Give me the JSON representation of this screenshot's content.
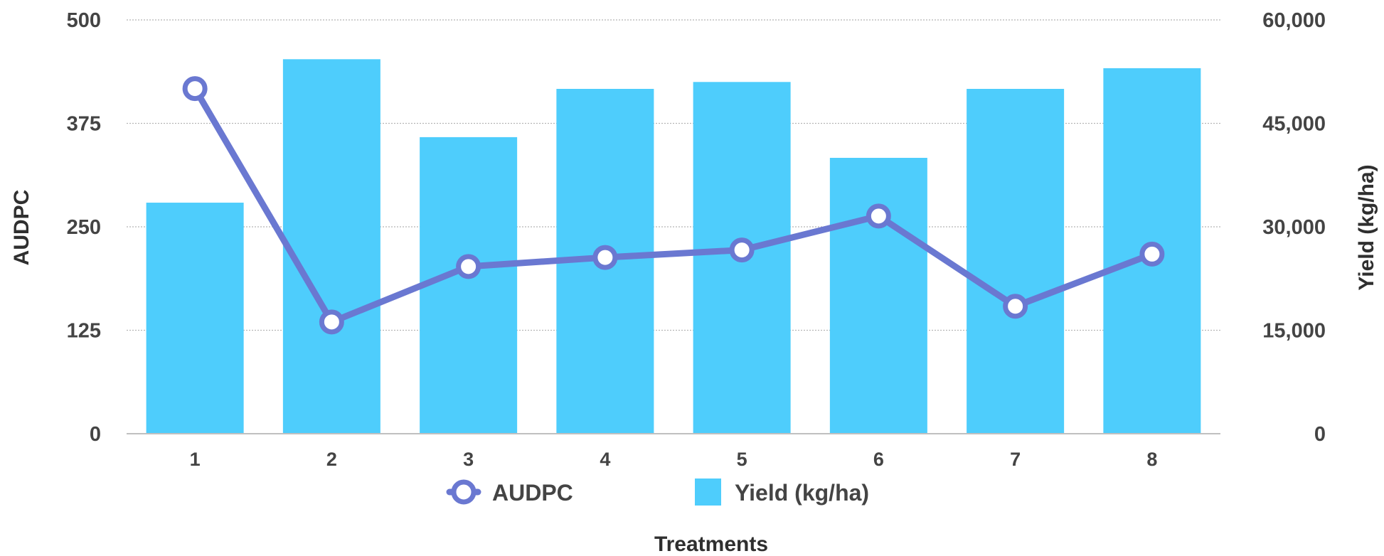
{
  "chart_data": {
    "type": "bar",
    "categories": [
      "1",
      "2",
      "3",
      "4",
      "5",
      "6",
      "7",
      "8"
    ],
    "series": [
      {
        "name": "Yield (kg/ha)",
        "type": "bar",
        "axis": "right",
        "color": "#4ecdfc",
        "values": [
          33500,
          54300,
          43000,
          50000,
          51000,
          40000,
          50000,
          53000
        ]
      },
      {
        "name": "AUDPC",
        "type": "line",
        "axis": "left",
        "color": "#6a78d1",
        "marker": "hollow-circle",
        "values": [
          417,
          135,
          202,
          213,
          222,
          263,
          154,
          217
        ]
      }
    ],
    "xlabel": "Treatments",
    "ylabel": "AUDPC",
    "y2label": "Yield (kg/ha)",
    "ylim": [
      0,
      500
    ],
    "y2lim": [
      0,
      60000
    ],
    "yticks": [
      "0",
      "125",
      "250",
      "375",
      "500"
    ],
    "y2ticks": [
      "0",
      "15,000",
      "30,000",
      "45,000",
      "60,000"
    ],
    "grid": true,
    "legend": "bottom",
    "gridline_color": "#b5b5b5",
    "axis_color": "#c0c0c0"
  }
}
